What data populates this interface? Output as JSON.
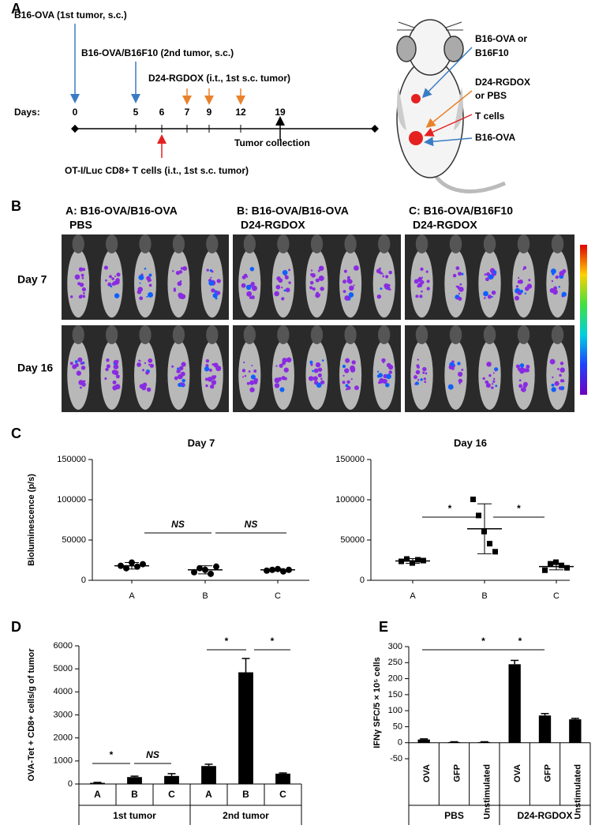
{
  "panel_labels": [
    "A",
    "B",
    "C",
    "D",
    "E"
  ],
  "timeline": {
    "events_top": [
      "B16-OVA (1st tumor, s.c.)",
      "B16-OVA/B16F10 (2nd tumor, s.c.)",
      "D24-RGDOX (i.t., 1st s.c. tumor)"
    ],
    "days_label": "Days:",
    "days": [
      0,
      5,
      6,
      7,
      9,
      12,
      19
    ],
    "tumor_collection": "Tumor collection",
    "t_cells": "OT-I/Luc CD8+ T cells (i.t., 1st s.c. tumor)"
  },
  "mouse_labels": [
    [
      "B16-OVA or",
      "B16F10"
    ],
    [
      "D24-RGDOX",
      "or PBS"
    ],
    [
      "T cells"
    ],
    [
      "B16-OVA"
    ]
  ],
  "imaging": {
    "groups": [
      [
        "A: B16-OVA/B16-OVA",
        "PBS"
      ],
      [
        "B: B16-OVA/B16-OVA",
        "D24-RGDOX"
      ],
      [
        "C: B16-OVA/B16F10",
        "D24-RGDOX"
      ]
    ],
    "rows": [
      "Day 7",
      "Day 16"
    ]
  },
  "chart_data": [
    {
      "type": "dotplot",
      "title": "Day 7",
      "ylabel": "Bioluminescence (p/s)",
      "categories": [
        "A",
        "B",
        "C"
      ],
      "points": [
        [
          18000,
          15000,
          22000,
          17000,
          20000
        ],
        [
          10000,
          15000,
          13000,
          8000,
          17000
        ],
        [
          12000,
          13000,
          14000,
          11000,
          13000
        ]
      ],
      "mean": [
        18000,
        13000,
        13000
      ],
      "sd": [
        4000,
        5000,
        1500
      ],
      "ylim": [
        0,
        150000
      ],
      "yticks": [
        0,
        50000,
        100000,
        150000
      ],
      "annotations": [
        "NS",
        "NS"
      ],
      "color": "#000000"
    },
    {
      "type": "dotplot",
      "title": "Day 16",
      "categories": [
        "A",
        "B",
        "C"
      ],
      "points": [
        [
          23000,
          26000,
          21000,
          25000,
          24000
        ],
        [
          100000,
          80000,
          60000,
          45000,
          35000
        ],
        [
          12000,
          20000,
          22000,
          18000,
          15000
        ]
      ],
      "mean": [
        24000,
        64000,
        17000
      ],
      "sd": [
        3000,
        31000,
        4000
      ],
      "ylim": [
        0,
        150000
      ],
      "yticks": [
        0,
        50000,
        100000,
        150000
      ],
      "annotations": [
        "*",
        "*"
      ],
      "color": "#000000"
    },
    {
      "type": "bar",
      "ylabel": "OVA-Tet + CD8+ cells/g of tumor",
      "categories": [
        "A",
        "B",
        "C",
        "A",
        "B",
        "C"
      ],
      "groups": [
        "1st tumor",
        "2nd tumor"
      ],
      "values": [
        50,
        300,
        350,
        780,
        4850,
        450
      ],
      "errors": [
        20,
        40,
        100,
        80,
        600,
        30
      ],
      "ylim": [
        0,
        6000
      ],
      "yticks": [
        0,
        1000,
        2000,
        3000,
        4000,
        5000,
        6000
      ],
      "annotations": [
        "*",
        "NS",
        "*",
        "*"
      ],
      "color": "#000000"
    },
    {
      "type": "bar",
      "ylabel": "IFNγ SFC/5 × 10⁵ cells",
      "categories": [
        "OVA",
        "GFP",
        "Unstimulated",
        "OVA",
        "GFP",
        "Unstimulated"
      ],
      "groups": [
        "PBS",
        "D24-RGDOX"
      ],
      "values": [
        10,
        2,
        2,
        245,
        85,
        73
      ],
      "errors": [
        2,
        1,
        1,
        12,
        6,
        3
      ],
      "ylim": [
        -50,
        300
      ],
      "yticks": [
        -50,
        0,
        50,
        100,
        150,
        200,
        250,
        300
      ],
      "annotations": [
        "*",
        "*"
      ],
      "color": "#000000"
    }
  ]
}
